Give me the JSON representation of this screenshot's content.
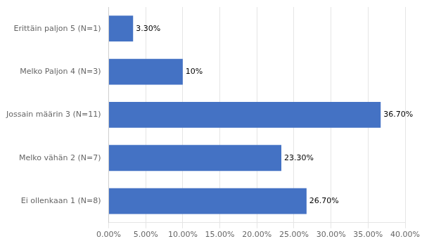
{
  "chart_data": {
    "type": "bar",
    "orientation": "horizontal",
    "categories": [
      "Erittäin paljon 5 (N=1)",
      "Melko Paljon 4 (N=3)",
      "Jossain määrin 3 (N=11)",
      "Melko vähän 2 (N=7)",
      "Ei ollenkaan 1 (N=8)"
    ],
    "values": [
      0.033,
      0.1,
      0.367,
      0.233,
      0.267
    ],
    "value_labels": [
      "3.30%",
      "10%",
      "36.70%",
      "23.30%",
      "26.70%"
    ],
    "data_labels": true,
    "color": "#4472C4",
    "xlim": [
      0,
      0.4
    ],
    "xticks": [
      {
        "value": 0.0,
        "label": "0.00%"
      },
      {
        "value": 0.05,
        "label": "5.00%"
      },
      {
        "value": 0.1,
        "label": "10.00%"
      },
      {
        "value": 0.15,
        "label": "15.00%"
      },
      {
        "value": 0.2,
        "label": "20.00%"
      },
      {
        "value": 0.25,
        "label": "25.00%"
      },
      {
        "value": 0.3,
        "label": "30.00%"
      },
      {
        "value": 0.35,
        "label": "35.00%"
      },
      {
        "value": 0.4,
        "label": "40.00%"
      }
    ],
    "grid": true
  }
}
